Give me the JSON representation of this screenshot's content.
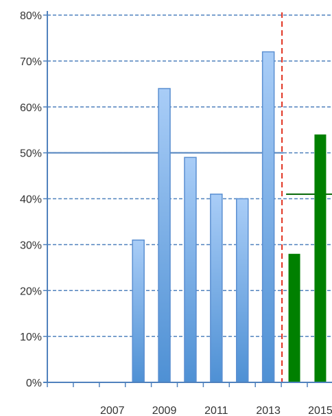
{
  "chart_data": {
    "type": "bar",
    "title": "",
    "xlabel": "",
    "ylabel": "",
    "x_tick_labels": [
      "2007",
      "2009",
      "2011",
      "2013",
      "2015"
    ],
    "y_tick_labels": [
      "0%",
      "10%",
      "20%",
      "30%",
      "40%",
      "50%",
      "60%",
      "70%",
      "80%"
    ],
    "ylim": [
      0,
      80
    ],
    "grid": true,
    "categories": [
      "2005",
      "2006",
      "2007",
      "2008",
      "2009",
      "2010",
      "2011",
      "2012",
      "2013",
      "2014",
      "2015"
    ],
    "series": [
      {
        "values": [
          null,
          null,
          null,
          31,
          64,
          49,
          41,
          40,
          72,
          null,
          null
        ],
        "color": "#5b9bd5"
      },
      {
        "values": [
          null,
          null,
          null,
          null,
          null,
          null,
          null,
          null,
          null,
          28,
          54
        ],
        "color": "#008000"
      }
    ],
    "reference_lines": [
      {
        "type": "vertical",
        "between": [
          "2013",
          "2014"
        ],
        "color": "#e0301e",
        "style": "dashed"
      },
      {
        "type": "horizontal",
        "value": 50,
        "from": "2005",
        "to": "2013",
        "color": "#4f81bd",
        "style": "solid"
      },
      {
        "type": "horizontal",
        "value": 41,
        "from": "2014",
        "to": "2015",
        "color": "#006400",
        "style": "solid"
      }
    ],
    "colors": {
      "grid": "#4f81bd",
      "bar_light": "#a9cdf7",
      "bar_dark": "#4e90d4",
      "bar_edge": "#5b8fd1",
      "green": "#008000",
      "axis": "#4f81bd"
    }
  }
}
